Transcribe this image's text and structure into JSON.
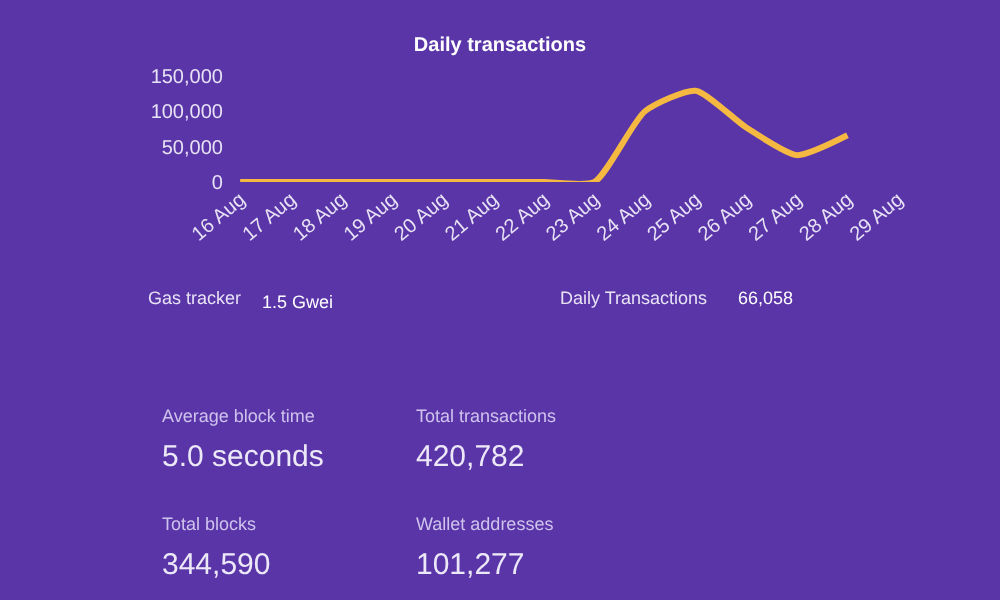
{
  "chart_data": {
    "type": "line",
    "title": "Daily transactions",
    "categories": [
      "16 Aug",
      "17 Aug",
      "18 Aug",
      "19 Aug",
      "20 Aug",
      "21 Aug",
      "22 Aug",
      "23 Aug",
      "24 Aug",
      "25 Aug",
      "26 Aug",
      "27 Aug",
      "28 Aug",
      "29 Aug"
    ],
    "series": [
      {
        "color": "#f5b942",
        "values": [
          0,
          0,
          0,
          0,
          0,
          0,
          0,
          0,
          100000,
          129000,
          77000,
          38000,
          66000,
          null
        ]
      }
    ],
    "ylim": [
      0,
      150000
    ],
    "yticks": [
      {
        "value": 0,
        "label": "0"
      },
      {
        "value": 50000,
        "label": "50,000"
      },
      {
        "value": 100000,
        "label": "100,000"
      },
      {
        "value": 150000,
        "label": "150,000"
      }
    ],
    "grid": false,
    "marker": "none",
    "line_style": "solid",
    "annotations": [
      "Gas tracker",
      "1.5 Gwei",
      "Daily Transactions",
      "66,058",
      "Average block time",
      "5.0 seconds",
      "Total transactions",
      "420,782",
      "Total blocks",
      "344,590",
      "Wallet addresses",
      "101,277"
    ]
  }
}
